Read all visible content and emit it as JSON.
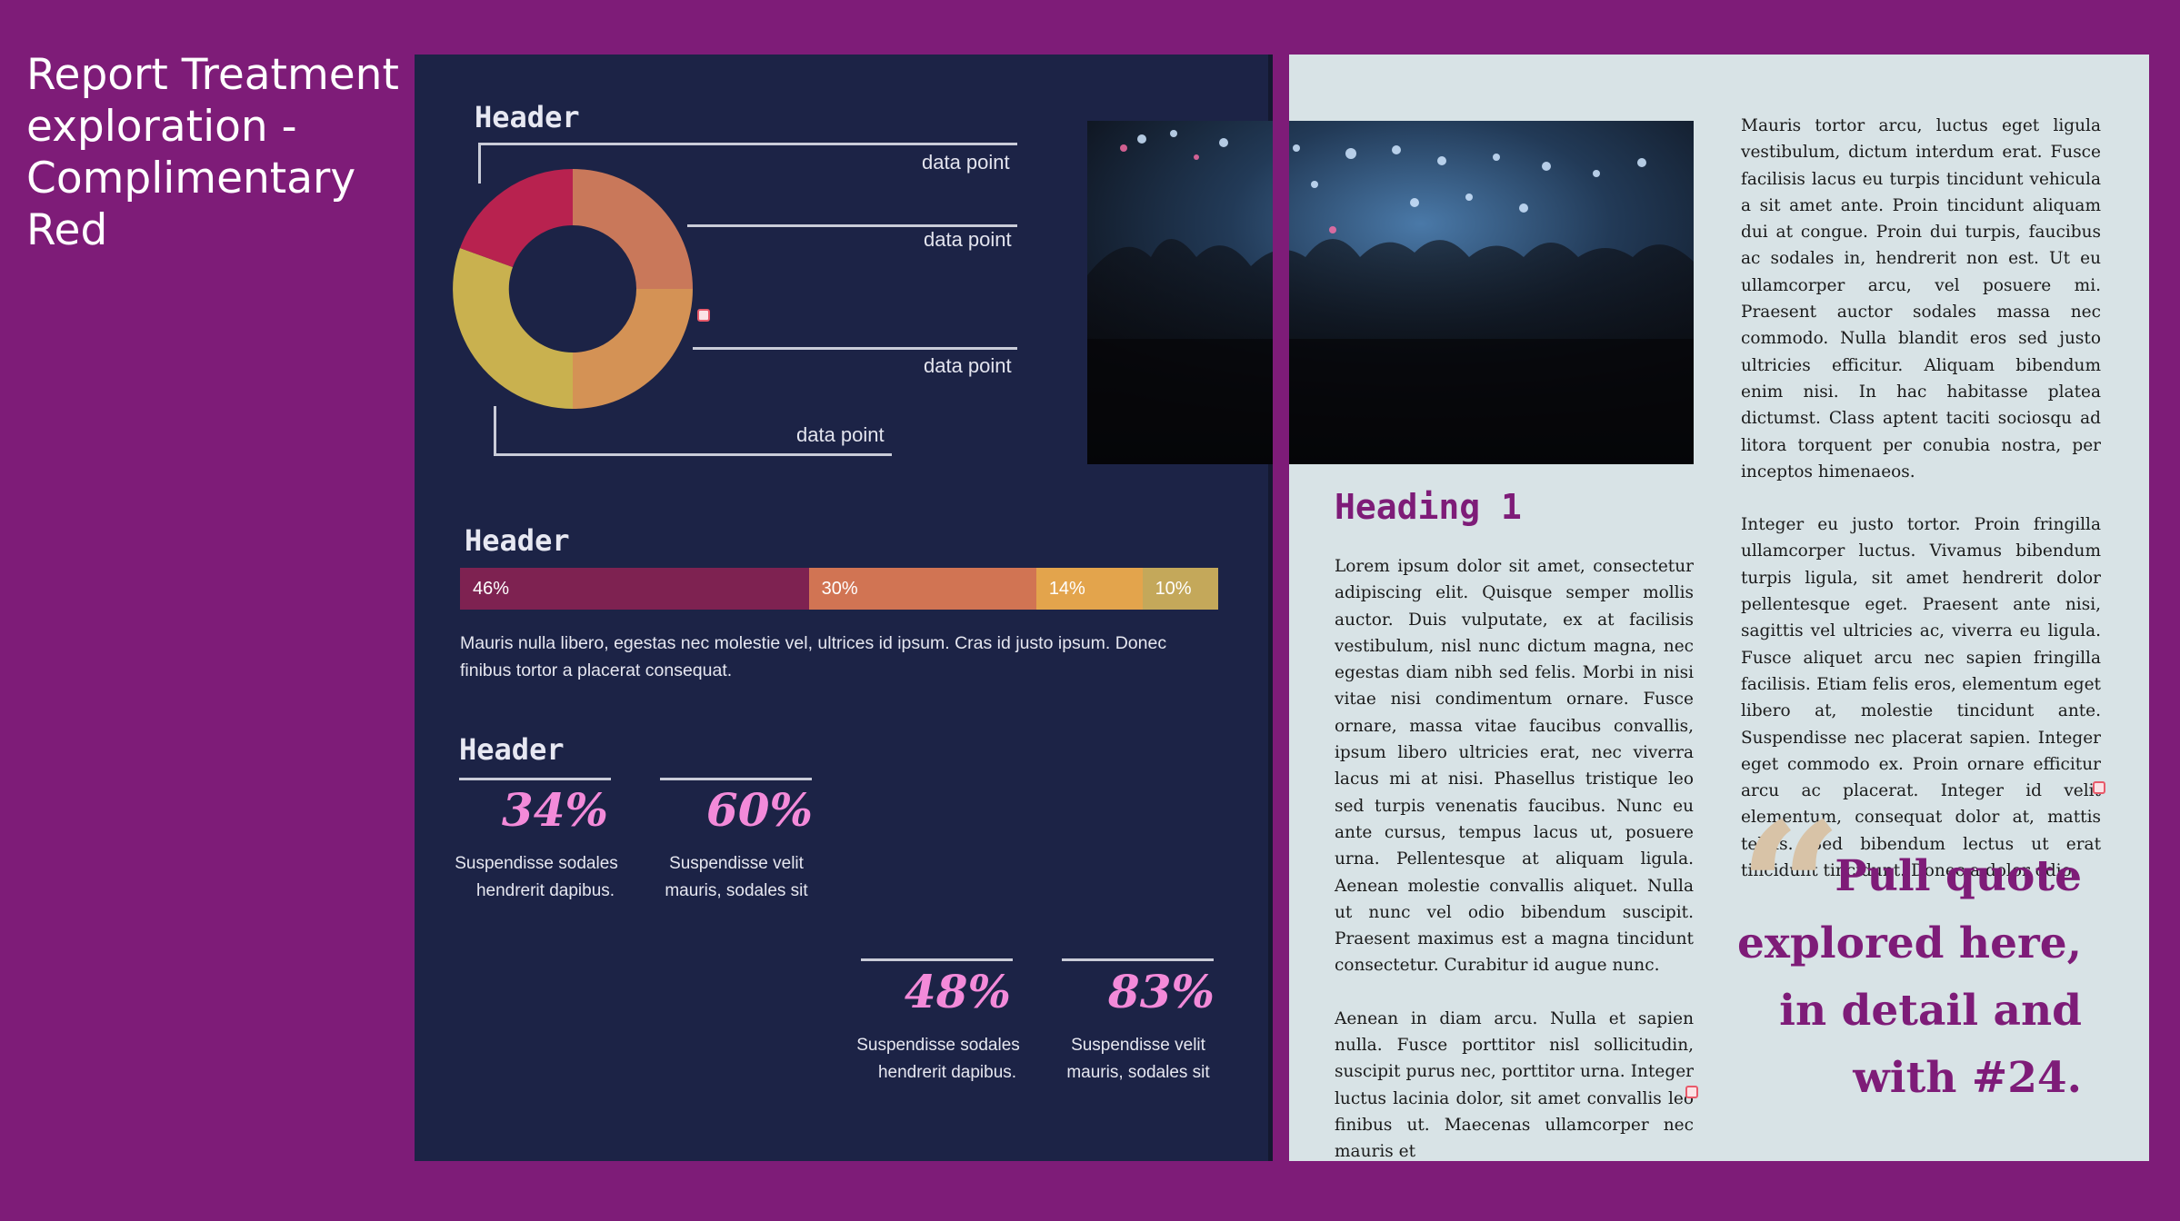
{
  "title": "Report Treatment exploration - Complimentary Red",
  "left_page": {
    "section1": {
      "header": "Header",
      "donut_labels": [
        "data point",
        "data point",
        "data point",
        "data point"
      ],
      "donut_colors": [
        "#c9785a",
        "#d49255",
        "#c9b14f",
        "#b8224f"
      ]
    },
    "section2": {
      "header": "Header",
      "bar": [
        {
          "label": "46%",
          "value": 46,
          "color": "#7e2251"
        },
        {
          "label": "30%",
          "value": 30,
          "color": "#d17453"
        },
        {
          "label": "14%",
          "value": 14,
          "color": "#e3a44c"
        },
        {
          "label": "10%",
          "value": 10,
          "color": "#c4a85a"
        }
      ],
      "body": "Mauris nulla libero, egestas nec molestie vel, ultrices id ipsum. Cras id justo ipsum. Donec finibus tortor a placerat consequat."
    },
    "section3": {
      "header": "Header",
      "stats": [
        {
          "value": "34%",
          "caption_1": "Suspendisse sodales",
          "caption_2": "hendrerit dapibus."
        },
        {
          "value": "60%",
          "caption_1": "Suspendisse velit",
          "caption_2": "mauris, sodales sit"
        },
        {
          "value": "48%",
          "caption_1": "Suspendisse sodales",
          "caption_2": "hendrerit dapibus."
        },
        {
          "value": "83%",
          "caption_1": "Suspendisse velit",
          "caption_2": "mauris, sodales sit"
        }
      ]
    }
  },
  "right_page": {
    "heading": "Heading 1",
    "col1_p1": "Lorem ipsum dolor sit amet, consectetur adipiscing elit. Quisque semper mollis auctor. Duis vulputate, ex at facilisis vestibulum, nisl nunc dictum magna, nec egestas diam nibh sed felis. Morbi in nisi vitae nisi condimentum ornare. Fusce ornare, massa vitae faucibus convallis, ipsum libero ultricies erat, nec viverra lacus mi at nisi. Phasellus tristique leo sed turpis venenatis faucibus. Nunc eu ante cursus, tempus lacus ut, posuere urna. Pellentesque at aliquam ligula. Aenean molestie convallis aliquet. Nulla ut nunc vel odio bibendum suscipit. Praesent maximus est a magna tincidunt consectetur. Curabitur id augue nunc.",
    "col1_p2": "Aenean in diam arcu. Nulla et sapien nulla. Fusce porttitor nisl sollicitudin, suscipit purus nec, porttitor urna. Integer luctus lacinia dolor, sit amet convallis leo finibus ut. Maecenas ullamcorper nec mauris et",
    "col2_p1": "Mauris tortor arcu, luctus eget ligula vestibulum, dictum interdum erat. Fusce facilisis lacus eu turpis tincidunt vehicula a sit amet ante. Proin tincidunt aliquam dui at congue. Proin dui turpis, faucibus ac sodales in, hendrerit non est. Ut eu ullamcorper arcu, vel posuere mi. Praesent auctor sodales massa nec commodo. Nulla blandit eros sed justo ultricies efficitur. Aliquam bibendum enim nisi. In hac habitasse platea dictumst. Class aptent taciti sociosqu ad litora torquent per conubia nostra, per inceptos himenaeos.",
    "col2_p2": "Integer eu justo tortor. Proin fringilla ullamcorper luctus. Vivamus bibendum turpis ligula, sit amet hendrerit dolor pellentesque eget. Praesent ante nisi, sagittis vel ultricies ac, viverra eu ligula. Fusce aliquet arcu nec sapien fringilla facilisis. Etiam felis eros, elementum eget libero at, molestie tincidunt ante. Suspendisse nec placerat sapien. Integer eget commodo ex. Proin ornare efficitur arcu ac placerat. Integer id velit elementum, consequat dolor at, mattis tellus. Sed bibendum lectus ut erat tincidunt tincidunt. Donec a dolor odio.",
    "quote_mark": "“",
    "pull_quote": "Pull quote explored here, in detail and with #24."
  }
}
